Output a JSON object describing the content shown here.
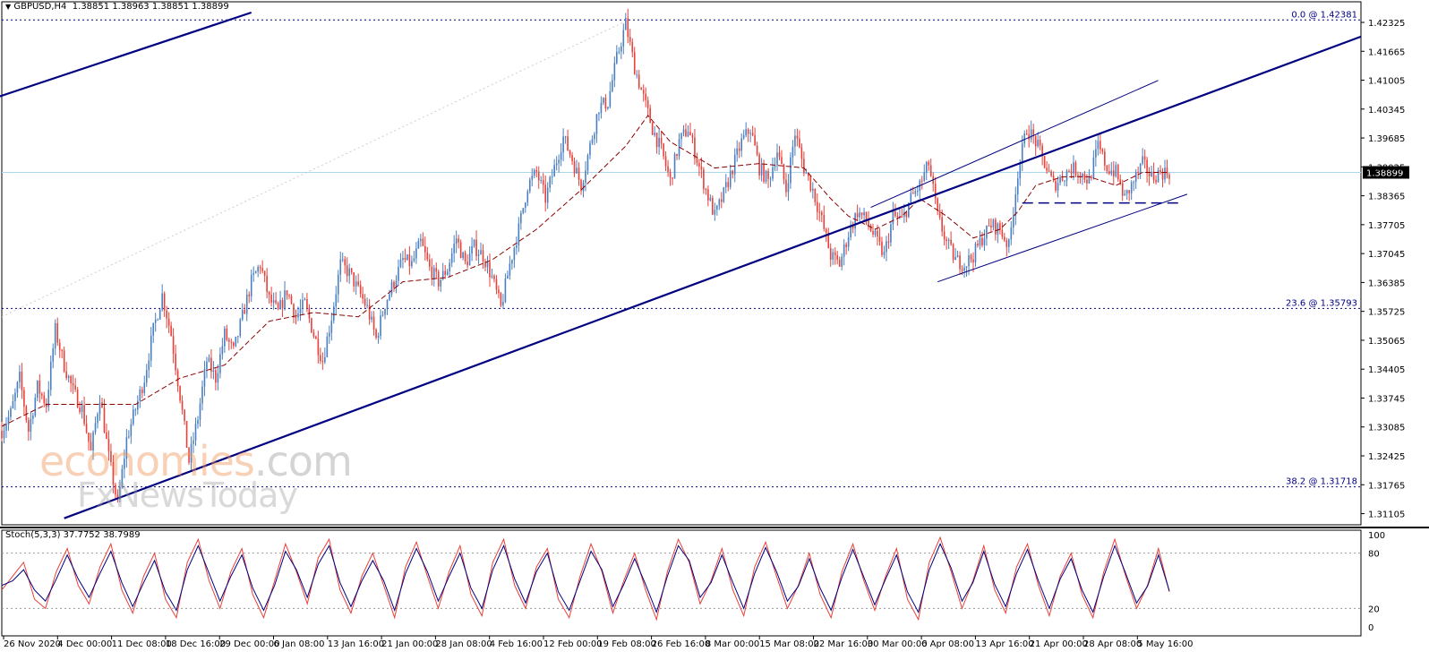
{
  "header": {
    "symbol": "GBPUSD,H4",
    "ohlc": "1.38851 1.38963 1.38851 1.38899"
  },
  "watermark": {
    "brand": "economies",
    "brand_suffix": ".com",
    "sub": "FxNewsToday"
  },
  "colors": {
    "bull": "#4a7fc1",
    "bear": "#e8413a",
    "ma": "#8b0000",
    "trendline": "#000080",
    "fib": "#000080",
    "bid_line": "#a8d8ea",
    "stoch_main": "#e8413a",
    "stoch_signal": "#000080"
  },
  "chart_data": [
    {
      "type": "candlestick",
      "symbol": "GBPUSD",
      "timeframe": "H4",
      "price_axis_ticks": [
        "1.42325",
        "1.41665",
        "1.41005",
        "1.40345",
        "1.39685",
        "1.39025",
        "1.38365",
        "1.37705",
        "1.37045",
        "1.36385",
        "1.35725",
        "1.35065",
        "1.34405",
        "1.33745",
        "1.33085",
        "1.32425",
        "1.31765",
        "1.31105"
      ],
      "ylim": [
        1.3085,
        1.4255
      ],
      "current_price_label": "1.38899",
      "current_price": 1.38899,
      "time_axis_labels": [
        "26 Nov 2020",
        "4 Dec 00:00",
        "11 Dec 08:00",
        "18 Dec 16:00",
        "29 Dec 00:00",
        "6 Jan 08:00",
        "13 Jan 16:00",
        "21 Jan 00:00",
        "28 Jan 08:00",
        "4 Feb 16:00",
        "12 Feb 00:00",
        "19 Feb 08:00",
        "26 Feb 16:00",
        "8 Mar 00:00",
        "15 Mar 08:00",
        "22 Mar 16:00",
        "30 Mar 00:00",
        "6 Apr 08:00",
        "13 Apr 16:00",
        "21 Apr 00:00",
        "28 Apr 08:00",
        "5 May 16:00"
      ],
      "close_path": [
        [
          0,
          1.33
        ],
        [
          4,
          1.334
        ],
        [
          8,
          1.342
        ],
        [
          12,
          1.33
        ],
        [
          16,
          1.34
        ],
        [
          20,
          1.336
        ],
        [
          24,
          1.353
        ],
        [
          28,
          1.345
        ],
        [
          32,
          1.339
        ],
        [
          36,
          1.335
        ],
        [
          40,
          1.325
        ],
        [
          44,
          1.338
        ],
        [
          48,
          1.324
        ],
        [
          52,
          1.313
        ],
        [
          56,
          1.328
        ],
        [
          60,
          1.335
        ],
        [
          64,
          1.342
        ],
        [
          68,
          1.353
        ],
        [
          72,
          1.361
        ],
        [
          76,
          1.352
        ],
        [
          80,
          1.338
        ],
        [
          84,
          1.323
        ],
        [
          88,
          1.333
        ],
        [
          92,
          1.346
        ],
        [
          96,
          1.342
        ],
        [
          100,
          1.352
        ],
        [
          104,
          1.348
        ],
        [
          108,
          1.356
        ],
        [
          112,
          1.364
        ],
        [
          116,
          1.368
        ],
        [
          120,
          1.36
        ],
        [
          124,
          1.357
        ],
        [
          128,
          1.362
        ],
        [
          132,
          1.356
        ],
        [
          136,
          1.359
        ],
        [
          140,
          1.352
        ],
        [
          144,
          1.346
        ],
        [
          148,
          1.356
        ],
        [
          152,
          1.368
        ],
        [
          156,
          1.366
        ],
        [
          160,
          1.362
        ],
        [
          164,
          1.358
        ],
        [
          168,
          1.351
        ],
        [
          172,
          1.359
        ],
        [
          176,
          1.364
        ],
        [
          180,
          1.369
        ],
        [
          184,
          1.368
        ],
        [
          188,
          1.373
        ],
        [
          192,
          1.367
        ],
        [
          196,
          1.364
        ],
        [
          200,
          1.367
        ],
        [
          204,
          1.374
        ],
        [
          208,
          1.368
        ],
        [
          212,
          1.372
        ],
        [
          216,
          1.37
        ],
        [
          220,
          1.365
        ],
        [
          224,
          1.358
        ],
        [
          228,
          1.368
        ],
        [
          232,
          1.376
        ],
        [
          236,
          1.386
        ],
        [
          240,
          1.389
        ],
        [
          244,
          1.383
        ],
        [
          248,
          1.39
        ],
        [
          252,
          1.397
        ],
        [
          256,
          1.392
        ],
        [
          260,
          1.386
        ],
        [
          264,
          1.395
        ],
        [
          268,
          1.404
        ],
        [
          272,
          1.405
        ],
        [
          276,
          1.415
        ],
        [
          280,
          1.423
        ],
        [
          284,
          1.413
        ],
        [
          288,
          1.406
        ],
        [
          292,
          1.399
        ],
        [
          296,
          1.394
        ],
        [
          300,
          1.387
        ],
        [
          304,
          1.396
        ],
        [
          308,
          1.399
        ],
        [
          312,
          1.392
        ],
        [
          316,
          1.385
        ],
        [
          320,
          1.379
        ],
        [
          324,
          1.384
        ],
        [
          328,
          1.39
        ],
        [
          332,
          1.396
        ],
        [
          336,
          1.399
        ],
        [
          340,
          1.39
        ],
        [
          344,
          1.387
        ],
        [
          348,
          1.394
        ],
        [
          352,
          1.385
        ],
        [
          356,
          1.398
        ],
        [
          360,
          1.39
        ],
        [
          364,
          1.385
        ],
        [
          368,
          1.378
        ],
        [
          372,
          1.37
        ],
        [
          376,
          1.368
        ],
        [
          380,
          1.375
        ],
        [
          384,
          1.38
        ],
        [
          388,
          1.378
        ],
        [
          392,
          1.374
        ],
        [
          396,
          1.37
        ],
        [
          400,
          1.379
        ],
        [
          404,
          1.378
        ],
        [
          408,
          1.383
        ],
        [
          412,
          1.386
        ],
        [
          416,
          1.391
        ],
        [
          420,
          1.379
        ],
        [
          424,
          1.373
        ],
        [
          428,
          1.369
        ],
        [
          432,
          1.368
        ],
        [
          436,
          1.37
        ],
        [
          440,
          1.374
        ],
        [
          444,
          1.377
        ],
        [
          448,
          1.376
        ],
        [
          452,
          1.372
        ],
        [
          456,
          1.389
        ],
        [
          460,
          1.399
        ],
        [
          464,
          1.396
        ],
        [
          468,
          1.391
        ],
        [
          472,
          1.386
        ],
        [
          476,
          1.388
        ],
        [
          480,
          1.39
        ],
        [
          484,
          1.389
        ],
        [
          488,
          1.387
        ],
        [
          492,
          1.395
        ],
        [
          496,
          1.39
        ],
        [
          500,
          1.389
        ],
        [
          504,
          1.383
        ],
        [
          508,
          1.387
        ],
        [
          512,
          1.391
        ],
        [
          516,
          1.388
        ],
        [
          520,
          1.389
        ],
        [
          524,
          1.389
        ]
      ],
      "ma_path": [
        [
          0,
          1.331
        ],
        [
          20,
          1.336
        ],
        [
          40,
          1.336
        ],
        [
          60,
          1.336
        ],
        [
          80,
          1.342
        ],
        [
          100,
          1.345
        ],
        [
          120,
          1.355
        ],
        [
          140,
          1.357
        ],
        [
          160,
          1.356
        ],
        [
          180,
          1.364
        ],
        [
          200,
          1.365
        ],
        [
          220,
          1.369
        ],
        [
          240,
          1.376
        ],
        [
          260,
          1.385
        ],
        [
          280,
          1.395
        ],
        [
          290,
          1.402
        ],
        [
          300,
          1.396
        ],
        [
          320,
          1.39
        ],
        [
          340,
          1.391
        ],
        [
          360,
          1.39
        ],
        [
          372,
          1.383
        ],
        [
          380,
          1.379
        ],
        [
          392,
          1.376
        ],
        [
          404,
          1.379
        ],
        [
          412,
          1.383
        ],
        [
          424,
          1.379
        ],
        [
          436,
          1.374
        ],
        [
          448,
          1.376
        ],
        [
          456,
          1.38
        ],
        [
          464,
          1.386
        ],
        [
          476,
          1.388
        ],
        [
          488,
          1.388
        ],
        [
          500,
          1.386
        ],
        [
          512,
          1.389
        ],
        [
          524,
          1.389
        ]
      ],
      "fibonacci": [
        {
          "label": "0.0 @ 1.42381",
          "price": 1.42381
        },
        {
          "label": "23.6 @ 1.35793",
          "price": 1.35793
        },
        {
          "label": "38.2 @ 1.31718",
          "price": 1.31718
        }
      ],
      "trendlines": [
        {
          "name": "upper-outer",
          "from": [
            -3,
            1.406
          ],
          "to": [
            112,
            1.4255
          ],
          "weight": "bold"
        },
        {
          "name": "main-support",
          "from": [
            28,
            1.31
          ],
          "to": [
            610,
            1.42
          ],
          "weight": "bold"
        },
        {
          "name": "channel-upper",
          "from": [
            390,
            1.381
          ],
          "to": [
            519,
            1.41
          ],
          "weight": "thin"
        },
        {
          "name": "channel-lower",
          "from": [
            420,
            1.364
          ],
          "to": [
            532,
            1.384
          ],
          "weight": "thin"
        },
        {
          "name": "support-dashed",
          "price": 1.382,
          "from_x": 458,
          "to_x": 530,
          "weight": "dashed"
        }
      ]
    },
    {
      "type": "line",
      "name": "Stoch(5,3,3)",
      "header_values": "37.7752 38.7989",
      "levels": [
        80,
        20
      ],
      "axis_ticks": [
        "100",
        "80",
        "20",
        "0"
      ],
      "ylim": [
        0,
        100
      ],
      "series": [
        {
          "name": "main",
          "values": [
            40,
            55,
            70,
            30,
            20,
            60,
            85,
            45,
            25,
            65,
            90,
            40,
            15,
            55,
            80,
            30,
            10,
            70,
            95,
            50,
            20,
            60,
            85,
            35,
            10,
            50,
            90,
            60,
            25,
            75,
            95,
            40,
            15,
            55,
            80,
            45,
            10,
            65,
            92,
            55,
            20,
            60,
            88,
            35,
            12,
            70,
            95,
            45,
            20,
            65,
            85,
            30,
            10,
            55,
            90,
            60,
            15,
            50,
            80,
            40,
            8,
            60,
            95,
            70,
            25,
            50,
            85,
            40,
            12,
            65,
            92,
            55,
            20,
            45,
            80,
            35,
            10,
            60,
            90,
            50,
            18,
            55,
            85,
            30,
            8,
            70,
            97,
            60,
            20,
            50,
            88,
            40,
            15,
            65,
            90,
            45,
            12,
            55,
            80,
            35,
            10,
            60,
            95,
            55,
            20,
            45,
            85,
            38
          ]
        },
        {
          "name": "signal",
          "values": [
            45,
            50,
            62,
            40,
            28,
            52,
            78,
            52,
            32,
            58,
            82,
            48,
            22,
            48,
            72,
            38,
            18,
            62,
            88,
            58,
            28,
            55,
            78,
            42,
            18,
            45,
            82,
            62,
            32,
            68,
            88,
            48,
            22,
            50,
            72,
            50,
            18,
            58,
            85,
            60,
            28,
            55,
            80,
            42,
            20,
            62,
            88,
            52,
            26,
            60,
            80,
            38,
            18,
            50,
            82,
            62,
            22,
            46,
            74,
            46,
            16,
            55,
            88,
            72,
            32,
            48,
            78,
            48,
            20,
            58,
            86,
            60,
            28,
            44,
            74,
            42,
            18,
            54,
            84,
            54,
            24,
            52,
            78,
            38,
            16,
            62,
            90,
            64,
            28,
            48,
            82,
            46,
            22,
            58,
            84,
            50,
            20,
            52,
            74,
            40,
            16,
            55,
            88,
            58,
            26,
            44,
            78,
            39
          ]
        }
      ]
    }
  ]
}
